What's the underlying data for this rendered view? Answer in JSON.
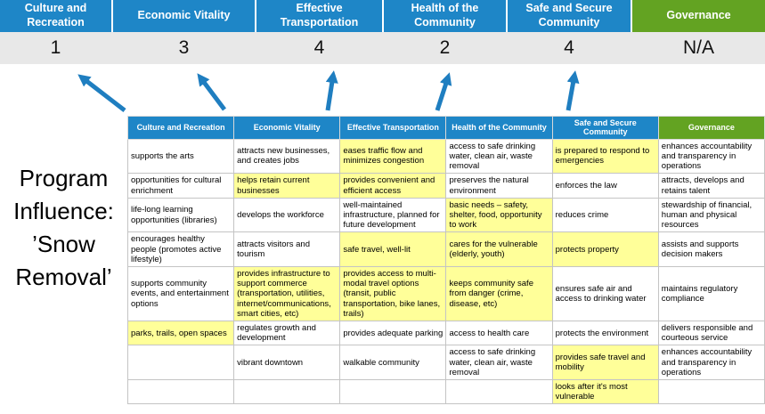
{
  "colors": {
    "header_blue": "#1E86C7",
    "header_green": "#63A322",
    "highlight_yellow": "#FFFF99",
    "score_band_gray": "#E8E8E8",
    "arrow_blue": "#1F7EC0"
  },
  "program_label": "Program Influence: ’Snow Removal’",
  "scoreboard": {
    "categories": [
      {
        "label": "Culture and Recreation",
        "score": "1"
      },
      {
        "label": "Economic Vitality",
        "score": "3"
      },
      {
        "label": "Effective Transportation",
        "score": "4"
      },
      {
        "label": "Health of the Community",
        "score": "2"
      },
      {
        "label": "Safe and Secure Community",
        "score": "4"
      },
      {
        "label": "Governance",
        "score": "N/A"
      }
    ]
  },
  "matrix": {
    "columns": [
      {
        "label": "Culture and Recreation",
        "accent": "blue"
      },
      {
        "label": "Economic Vitality",
        "accent": "blue"
      },
      {
        "label": "Effective Transportation",
        "accent": "blue"
      },
      {
        "label": "Health of the Community",
        "accent": "blue"
      },
      {
        "label": "Safe and Secure Community",
        "accent": "blue"
      },
      {
        "label": "Governance",
        "accent": "green"
      }
    ],
    "rows": [
      [
        {
          "text": "supports the arts",
          "highlight": false
        },
        {
          "text": "attracts new businesses, and creates jobs",
          "highlight": false
        },
        {
          "text": "eases traffic flow and minimizes congestion",
          "highlight": true
        },
        {
          "text": "access to safe drinking water, clean air, waste removal",
          "highlight": false
        },
        {
          "text": "is prepared to respond to emergencies",
          "highlight": true
        },
        {
          "text": "enhances accountability and transparency in operations",
          "highlight": false
        }
      ],
      [
        {
          "text": "opportunities for cultural enrichment",
          "highlight": false
        },
        {
          "text": "helps retain current businesses",
          "highlight": true
        },
        {
          "text": "provides convenient and efficient access",
          "highlight": true
        },
        {
          "text": "preserves the natural environment",
          "highlight": false
        },
        {
          "text": "enforces the law",
          "highlight": false
        },
        {
          "text": "attracts, develops and retains talent",
          "highlight": false
        }
      ],
      [
        {
          "text": "life-long learning opportunities (libraries)",
          "highlight": false
        },
        {
          "text": "develops the workforce",
          "highlight": false
        },
        {
          "text": "well-maintained infrastructure, planned for future development",
          "highlight": false
        },
        {
          "text": "basic needs – safety, shelter, food, opportunity to work",
          "highlight": true
        },
        {
          "text": "reduces crime",
          "highlight": false
        },
        {
          "text": "stewardship of financial, human and physical resources",
          "highlight": false
        }
      ],
      [
        {
          "text": "encourages healthy people (promotes active lifestyle)",
          "highlight": false
        },
        {
          "text": "attracts visitors and tourism",
          "highlight": false
        },
        {
          "text": "safe travel, well-lit",
          "highlight": true
        },
        {
          "text": "cares for the vulnerable (elderly, youth)",
          "highlight": true
        },
        {
          "text": "protects property",
          "highlight": true
        },
        {
          "text": "assists and supports decision makers",
          "highlight": false
        }
      ],
      [
        {
          "text": "supports community events, and entertainment options",
          "highlight": false
        },
        {
          "text": "provides infrastructure to support commerce (transportation, utilities, internet/communications, smart cities, etc)",
          "highlight": true
        },
        {
          "text": "provides access to multi-modal travel options (transit, public transportation, bike lanes, trails)",
          "highlight": true
        },
        {
          "text": "keeps community safe from danger (crime, disease, etc)",
          "highlight": true
        },
        {
          "text": "ensures safe air and access to drinking water",
          "highlight": false
        },
        {
          "text": "maintains regulatory compliance",
          "highlight": false
        }
      ],
      [
        {
          "text": "parks, trails, open spaces",
          "highlight": true
        },
        {
          "text": "regulates growth and development",
          "highlight": false
        },
        {
          "text": "provides adequate parking",
          "highlight": false
        },
        {
          "text": "access to health care",
          "highlight": false
        },
        {
          "text": "protects the environment",
          "highlight": false
        },
        {
          "text": "delivers responsible and courteous service",
          "highlight": false
        }
      ],
      [
        {
          "text": "",
          "highlight": false
        },
        {
          "text": "vibrant downtown",
          "highlight": false
        },
        {
          "text": "walkable community",
          "highlight": false
        },
        {
          "text": "access to safe drinking water, clean air, waste removal",
          "highlight": false
        },
        {
          "text": "provides safe travel and mobility",
          "highlight": true
        },
        {
          "text": "enhances accountability and transparency in operations",
          "highlight": false
        }
      ],
      [
        {
          "text": "",
          "highlight": false
        },
        {
          "text": "",
          "highlight": false
        },
        {
          "text": "",
          "highlight": false
        },
        {
          "text": "",
          "highlight": false
        },
        {
          "text": "looks after it's most vulnerable",
          "highlight": true
        },
        {
          "text": "",
          "highlight": false
        }
      ]
    ]
  }
}
